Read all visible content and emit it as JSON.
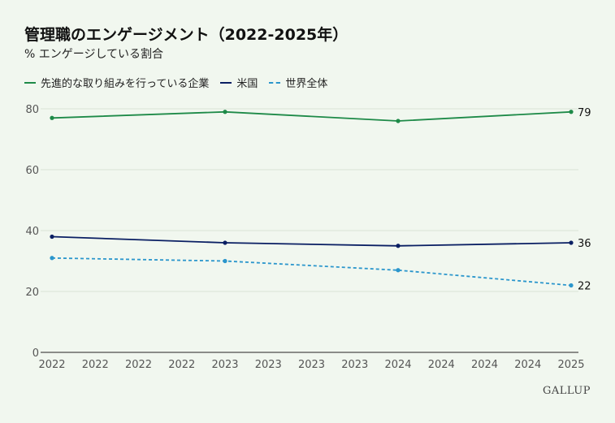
{
  "chart_data": {
    "type": "line",
    "title": "管理職のエンゲージメント（2022-2025年）",
    "subtitle": "% エンゲージしている割合",
    "x": [
      "2022",
      "2022",
      "2022",
      "2022",
      "2023",
      "2023",
      "2023",
      "2023",
      "2024",
      "2024",
      "2024",
      "2024",
      "2025"
    ],
    "ylim": [
      0,
      80
    ],
    "yticks": [
      0,
      20,
      40,
      60,
      80
    ],
    "grid": true,
    "legend_position": "top-left",
    "series": [
      {
        "name": "先進的な取り組みを行っている企業",
        "color": "#1e8a48",
        "style": "solid",
        "points": [
          {
            "x": 0,
            "y": 77
          },
          {
            "x": 4,
            "y": 79
          },
          {
            "x": 8,
            "y": 76
          },
          {
            "x": 12,
            "y": 79
          }
        ],
        "end_label": "79"
      },
      {
        "name": "米国",
        "color": "#0a1f63",
        "style": "solid",
        "points": [
          {
            "x": 0,
            "y": 38
          },
          {
            "x": 4,
            "y": 36
          },
          {
            "x": 8,
            "y": 35
          },
          {
            "x": 12,
            "y": 36
          }
        ],
        "end_label": "36"
      },
      {
        "name": "世界全体",
        "color": "#2b96cc",
        "style": "dashed",
        "points": [
          {
            "x": 0,
            "y": 31
          },
          {
            "x": 4,
            "y": 30
          },
          {
            "x": 8,
            "y": 27
          },
          {
            "x": 12,
            "y": 22
          }
        ],
        "end_label": "22"
      }
    ]
  },
  "branding": {
    "logo_text": "GALLUP"
  }
}
